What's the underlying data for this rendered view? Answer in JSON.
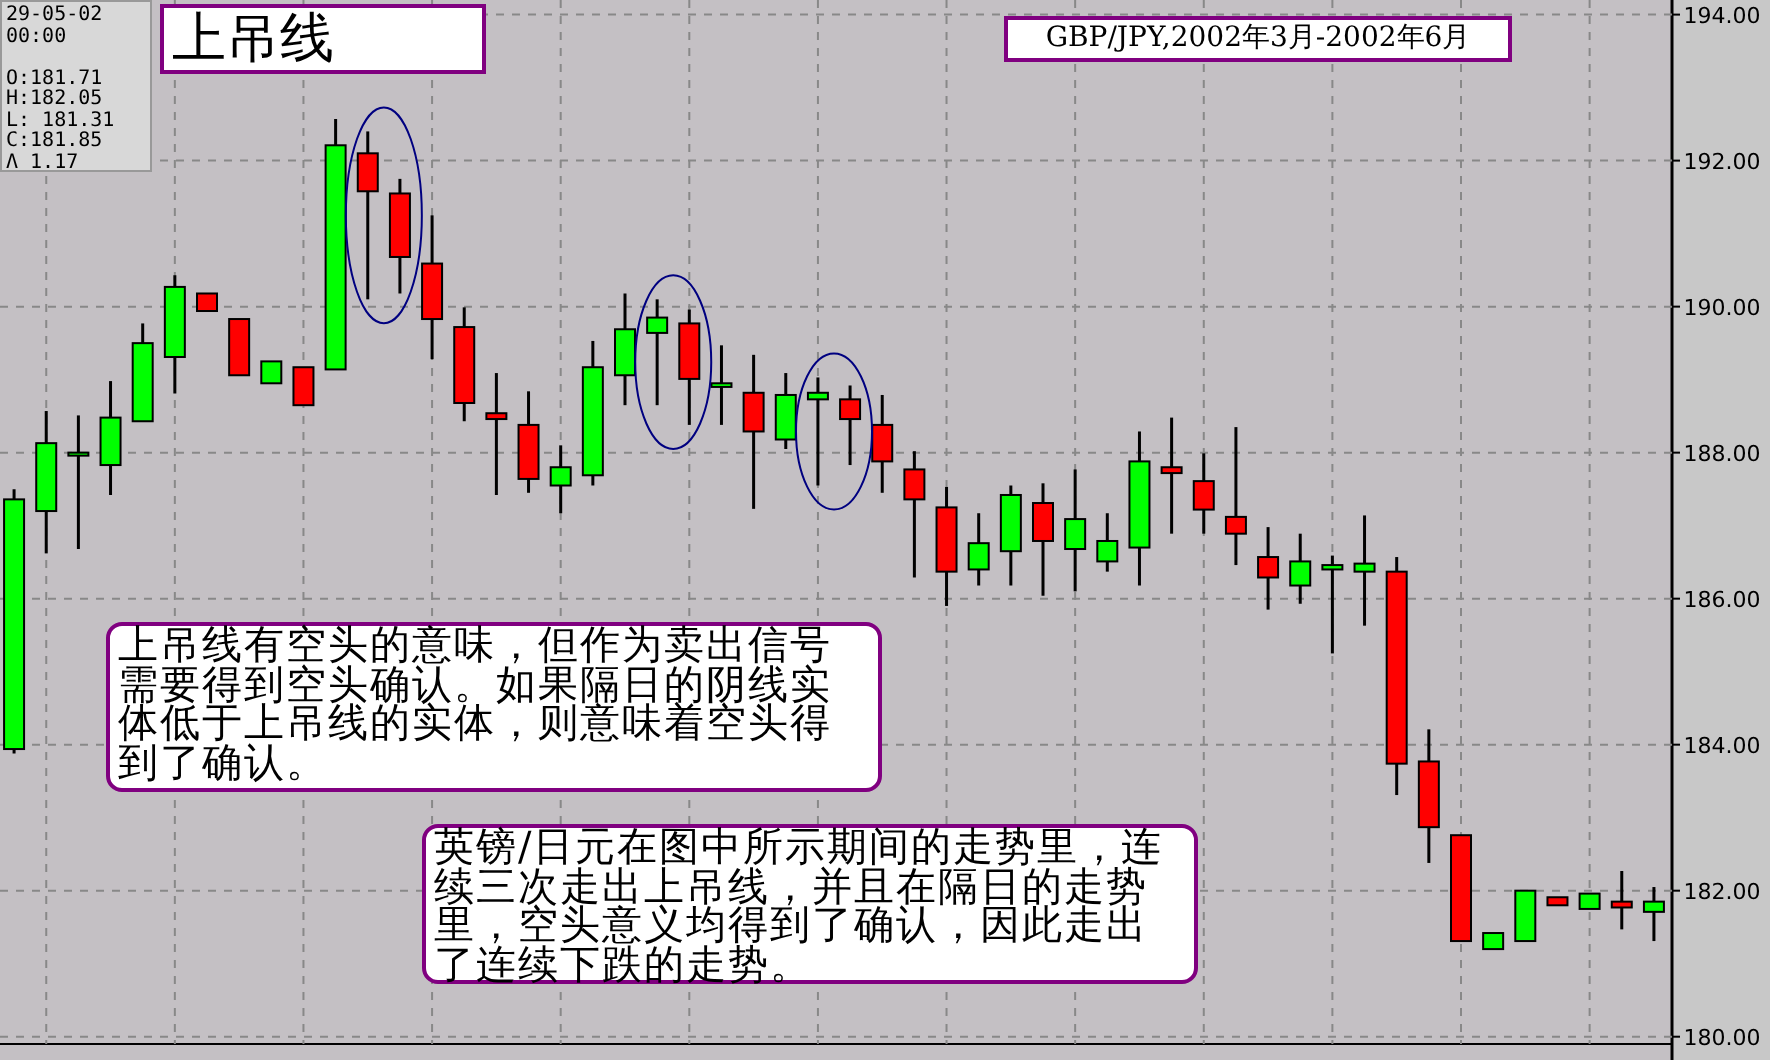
{
  "chart_data": {
    "type": "candlestick",
    "title": "上吊线",
    "subtitle": "GBP/JPY,2002年3月-2002年6月",
    "categories": [
      null,
      null,
      null,
      null,
      null,
      null,
      null,
      null,
      null,
      null,
      null,
      null,
      null,
      null,
      null,
      null,
      null,
      null,
      null,
      null,
      null,
      null,
      null,
      null,
      null,
      null,
      null,
      null,
      null,
      null,
      null,
      null,
      null,
      null,
      null,
      null,
      null,
      null,
      null,
      null,
      null,
      null,
      null,
      null,
      null,
      null,
      null,
      null,
      null,
      null,
      null,
      null
    ],
    "ohlc": [
      [
        183.94,
        187.5,
        183.88,
        187.36
      ],
      [
        187.2,
        188.57,
        186.62,
        188.13
      ],
      [
        187.98,
        188.51,
        186.68,
        188.0
      ],
      [
        187.83,
        188.98,
        187.42,
        188.48
      ],
      [
        188.43,
        189.77,
        188.43,
        189.5
      ],
      [
        189.31,
        190.43,
        188.81,
        190.27
      ],
      [
        190.18,
        190.18,
        189.94,
        189.94
      ],
      [
        189.83,
        189.83,
        189.06,
        189.06
      ],
      [
        188.95,
        189.25,
        188.95,
        189.25
      ],
      [
        189.17,
        189.17,
        188.65,
        188.65
      ],
      [
        189.14,
        192.57,
        189.14,
        192.21
      ],
      [
        192.1,
        192.4,
        190.1,
        191.58
      ],
      [
        191.55,
        191.75,
        190.18,
        190.68
      ],
      [
        190.59,
        191.25,
        189.28,
        189.83
      ],
      [
        189.72,
        189.99,
        188.43,
        188.68
      ],
      [
        188.54,
        189.09,
        187.42,
        188.46
      ],
      [
        188.38,
        188.84,
        187.45,
        187.64
      ],
      [
        187.55,
        188.1,
        187.17,
        187.8
      ],
      [
        187.69,
        189.53,
        187.55,
        189.17
      ],
      [
        189.06,
        190.18,
        188.65,
        189.69
      ],
      [
        189.64,
        190.1,
        188.65,
        189.85
      ],
      [
        189.77,
        189.96,
        188.38,
        189.01
      ],
      [
        188.9,
        189.47,
        188.38,
        188.95
      ],
      [
        188.82,
        189.34,
        187.23,
        188.29
      ],
      [
        188.18,
        189.09,
        188.05,
        188.79
      ],
      [
        188.73,
        189.03,
        187.55,
        188.82
      ],
      [
        188.73,
        188.92,
        187.83,
        188.46
      ],
      [
        188.38,
        188.79,
        187.45,
        187.88
      ],
      [
        187.77,
        188.02,
        186.29,
        187.36
      ],
      [
        187.25,
        187.53,
        185.9,
        186.37
      ],
      [
        186.4,
        187.17,
        186.18,
        186.76
      ],
      [
        186.65,
        187.55,
        186.18,
        187.42
      ],
      [
        187.31,
        187.58,
        186.04,
        186.79
      ],
      [
        186.68,
        187.77,
        186.1,
        187.09
      ],
      [
        186.51,
        187.17,
        186.37,
        186.79
      ],
      [
        186.7,
        188.29,
        186.18,
        187.88
      ],
      [
        187.8,
        188.48,
        186.89,
        187.72
      ],
      [
        187.61,
        187.99,
        186.89,
        187.22
      ],
      [
        187.12,
        188.35,
        186.46,
        186.89
      ],
      [
        186.57,
        186.98,
        185.85,
        186.29
      ],
      [
        186.18,
        186.89,
        185.93,
        186.51
      ],
      [
        186.4,
        186.59,
        185.25,
        186.46
      ],
      [
        186.37,
        187.14,
        185.63,
        186.48
      ],
      [
        186.37,
        186.57,
        183.31,
        183.74
      ],
      [
        183.77,
        184.21,
        182.38,
        182.87
      ],
      [
        182.76,
        182.76,
        181.31,
        181.31
      ],
      [
        181.2,
        181.42,
        181.2,
        181.42
      ],
      [
        181.31,
        182.0,
        181.31,
        182.0
      ],
      [
        181.91,
        181.91,
        181.8,
        181.8
      ],
      [
        181.75,
        181.96,
        181.75,
        181.96
      ],
      [
        181.85,
        182.27,
        181.47,
        181.77
      ],
      [
        181.71,
        182.05,
        181.31,
        181.85
      ]
    ],
    "ylim": [
      179.9,
      194.2
    ],
    "yticks": [
      {
        "value": 194,
        "label": "194.00"
      },
      {
        "value": 192,
        "label": "192.00"
      },
      {
        "value": 190,
        "label": "190.00"
      },
      {
        "value": 188,
        "label": "188.00"
      },
      {
        "value": 186,
        "label": "186.00"
      },
      {
        "value": 184,
        "label": "184.00"
      },
      {
        "value": 182,
        "label": "182.00"
      },
      {
        "value": 180,
        "label": "180.00"
      }
    ],
    "grid": true,
    "annotations": [
      "29-05-02\n00:00\n\nO:181.71\nH:182.05\nL: 181.31\nC:181.85\nΛ 1.17",
      "上吊线有空头的意味，但作为卖出信号需要得到空头确认。如果隔日的阴线实体低于上吊线的实体，则意味着空头得到了确认。",
      "英镑/日元在图中所示期间的走势里，连续三次走出上吊线，并且在隔日的走势里，空头意义均得到了确认，因此走出了连续下跌的走势。"
    ]
  }
}
